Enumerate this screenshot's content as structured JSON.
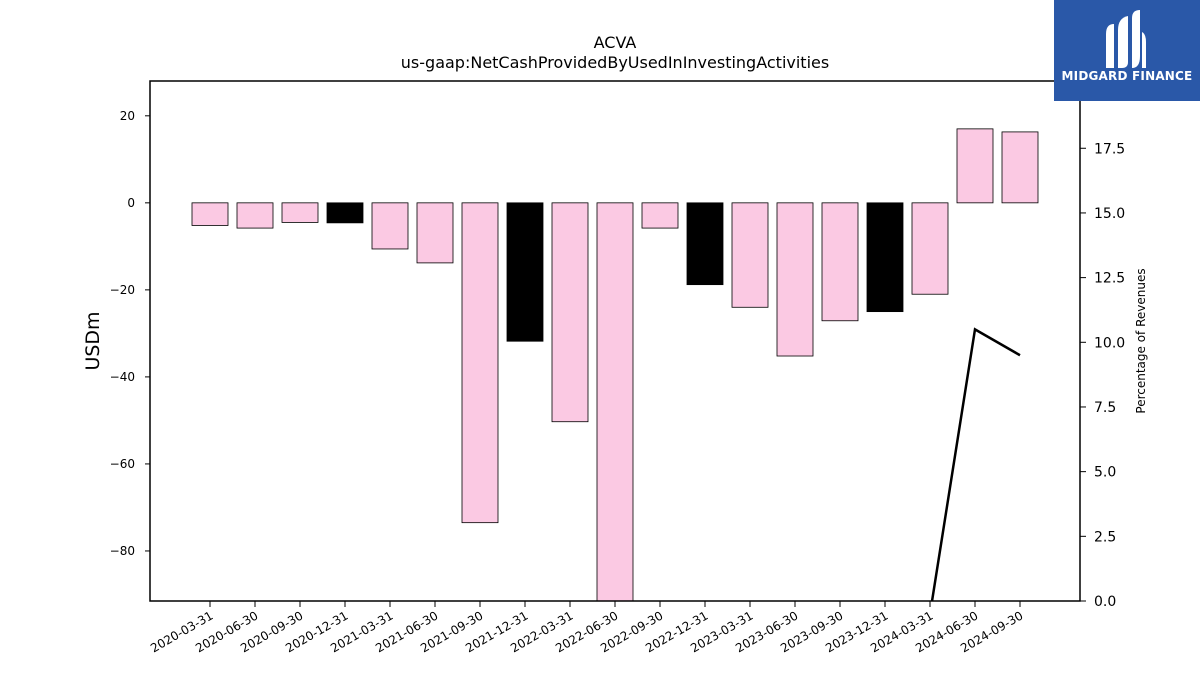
{
  "chart_data": {
    "type": "bar",
    "title": "ACVA",
    "subtitle": "us-gaap:NetCashProvidedByUsedInInvestingActivities",
    "ylabel": "USDm",
    "y2label": "Percentage of Revenues",
    "xlabel": "",
    "ylim": [
      -91.5,
      28
    ],
    "y2lim": [
      0,
      20.1
    ],
    "yticks": [
      20,
      0,
      -20,
      -40,
      -60,
      -80
    ],
    "yticklabels": [
      "20",
      "0",
      "−20",
      "−40",
      "−60",
      "−80"
    ],
    "y2ticks": [
      0,
      2.5,
      5,
      7.5,
      10,
      12.5,
      15,
      17.5
    ],
    "y2ticklabels": [
      "0.0",
      "2.5",
      "5.0",
      "7.5",
      "10.0",
      "12.5",
      "15.0",
      "17.5"
    ],
    "grid": false,
    "categories": [
      "2020-03-31",
      "2020-06-30",
      "2020-09-30",
      "2020-12-31",
      "2021-03-31",
      "2021-06-30",
      "2021-09-30",
      "2021-12-31",
      "2022-03-31",
      "2022-06-30",
      "2022-09-30",
      "2022-12-31",
      "2023-03-31",
      "2023-06-30",
      "2023-09-30",
      "2023-12-31",
      "2024-03-31",
      "2024-06-30",
      "2024-09-30"
    ],
    "values": [
      -5.2,
      -5.8,
      -4.5,
      -4.6,
      -10.6,
      -13.8,
      -73.5,
      -31.8,
      -50.3,
      -91.5,
      -5.8,
      -18.8,
      -24.0,
      -35.2,
      -27.1,
      -25.0,
      -21.0,
      17.0,
      16.3
    ],
    "bar_colors": [
      "#fbc9e3",
      "#fbc9e3",
      "#fbc9e3",
      "#000000",
      "#fbc9e3",
      "#fbc9e3",
      "#fbc9e3",
      "#000000",
      "#fbc9e3",
      "#fbc9e3",
      "#fbc9e3",
      "#000000",
      "#fbc9e3",
      "#fbc9e3",
      "#fbc9e3",
      "#000000",
      "#fbc9e3",
      "#fbc9e3",
      "#fbc9e3"
    ],
    "line_series": {
      "x": [
        "2024-03-31",
        "2024-06-30",
        "2024-09-30"
      ],
      "values": [
        -0.5,
        10.5,
        9.5
      ],
      "color": "#000000"
    }
  },
  "logo": {
    "text": "MIDGARD FINANCE",
    "background": "#2a58a8"
  }
}
